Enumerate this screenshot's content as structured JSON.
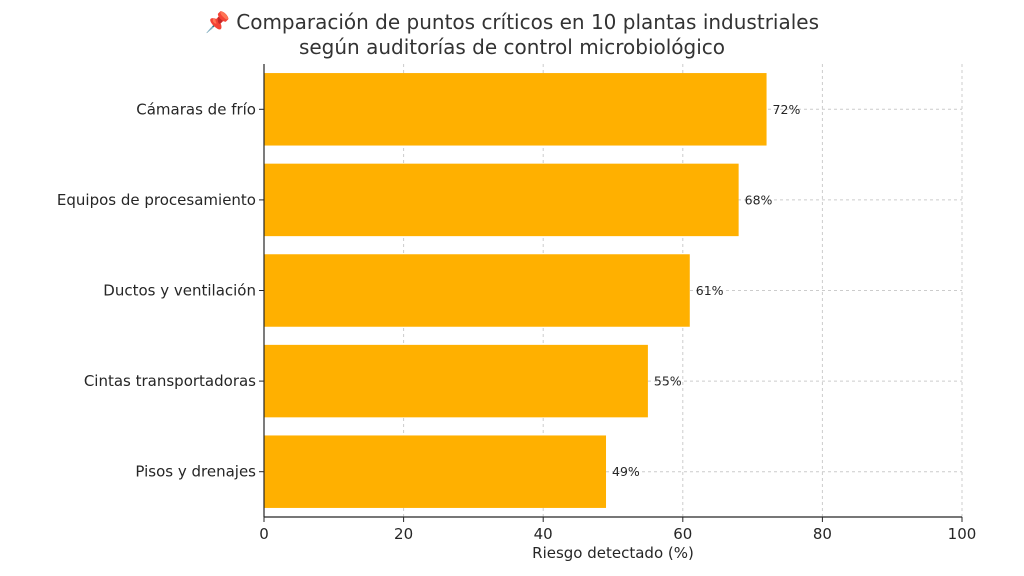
{
  "chart_data": {
    "type": "bar",
    "orientation": "horizontal",
    "title_lines": [
      "📌 Comparación de puntos críticos en 10 plantas industriales",
      "según auditorías de control microbiológico"
    ],
    "categories": [
      "Cámaras de frío",
      "Equipos de procesamiento",
      "Ductos y ventilación",
      "Cintas transportadoras",
      "Pisos y drenajes"
    ],
    "values": [
      72,
      68,
      61,
      55,
      49
    ],
    "data_labels": [
      "72%",
      "68%",
      "61%",
      "55%",
      "49%"
    ],
    "xlabel": "Riesgo detectado (%)",
    "ylabel": "",
    "xlim": [
      0,
      100
    ],
    "xticks": [
      0,
      20,
      40,
      60,
      80,
      100
    ],
    "grid": true,
    "bar_color": "#FFB000"
  }
}
